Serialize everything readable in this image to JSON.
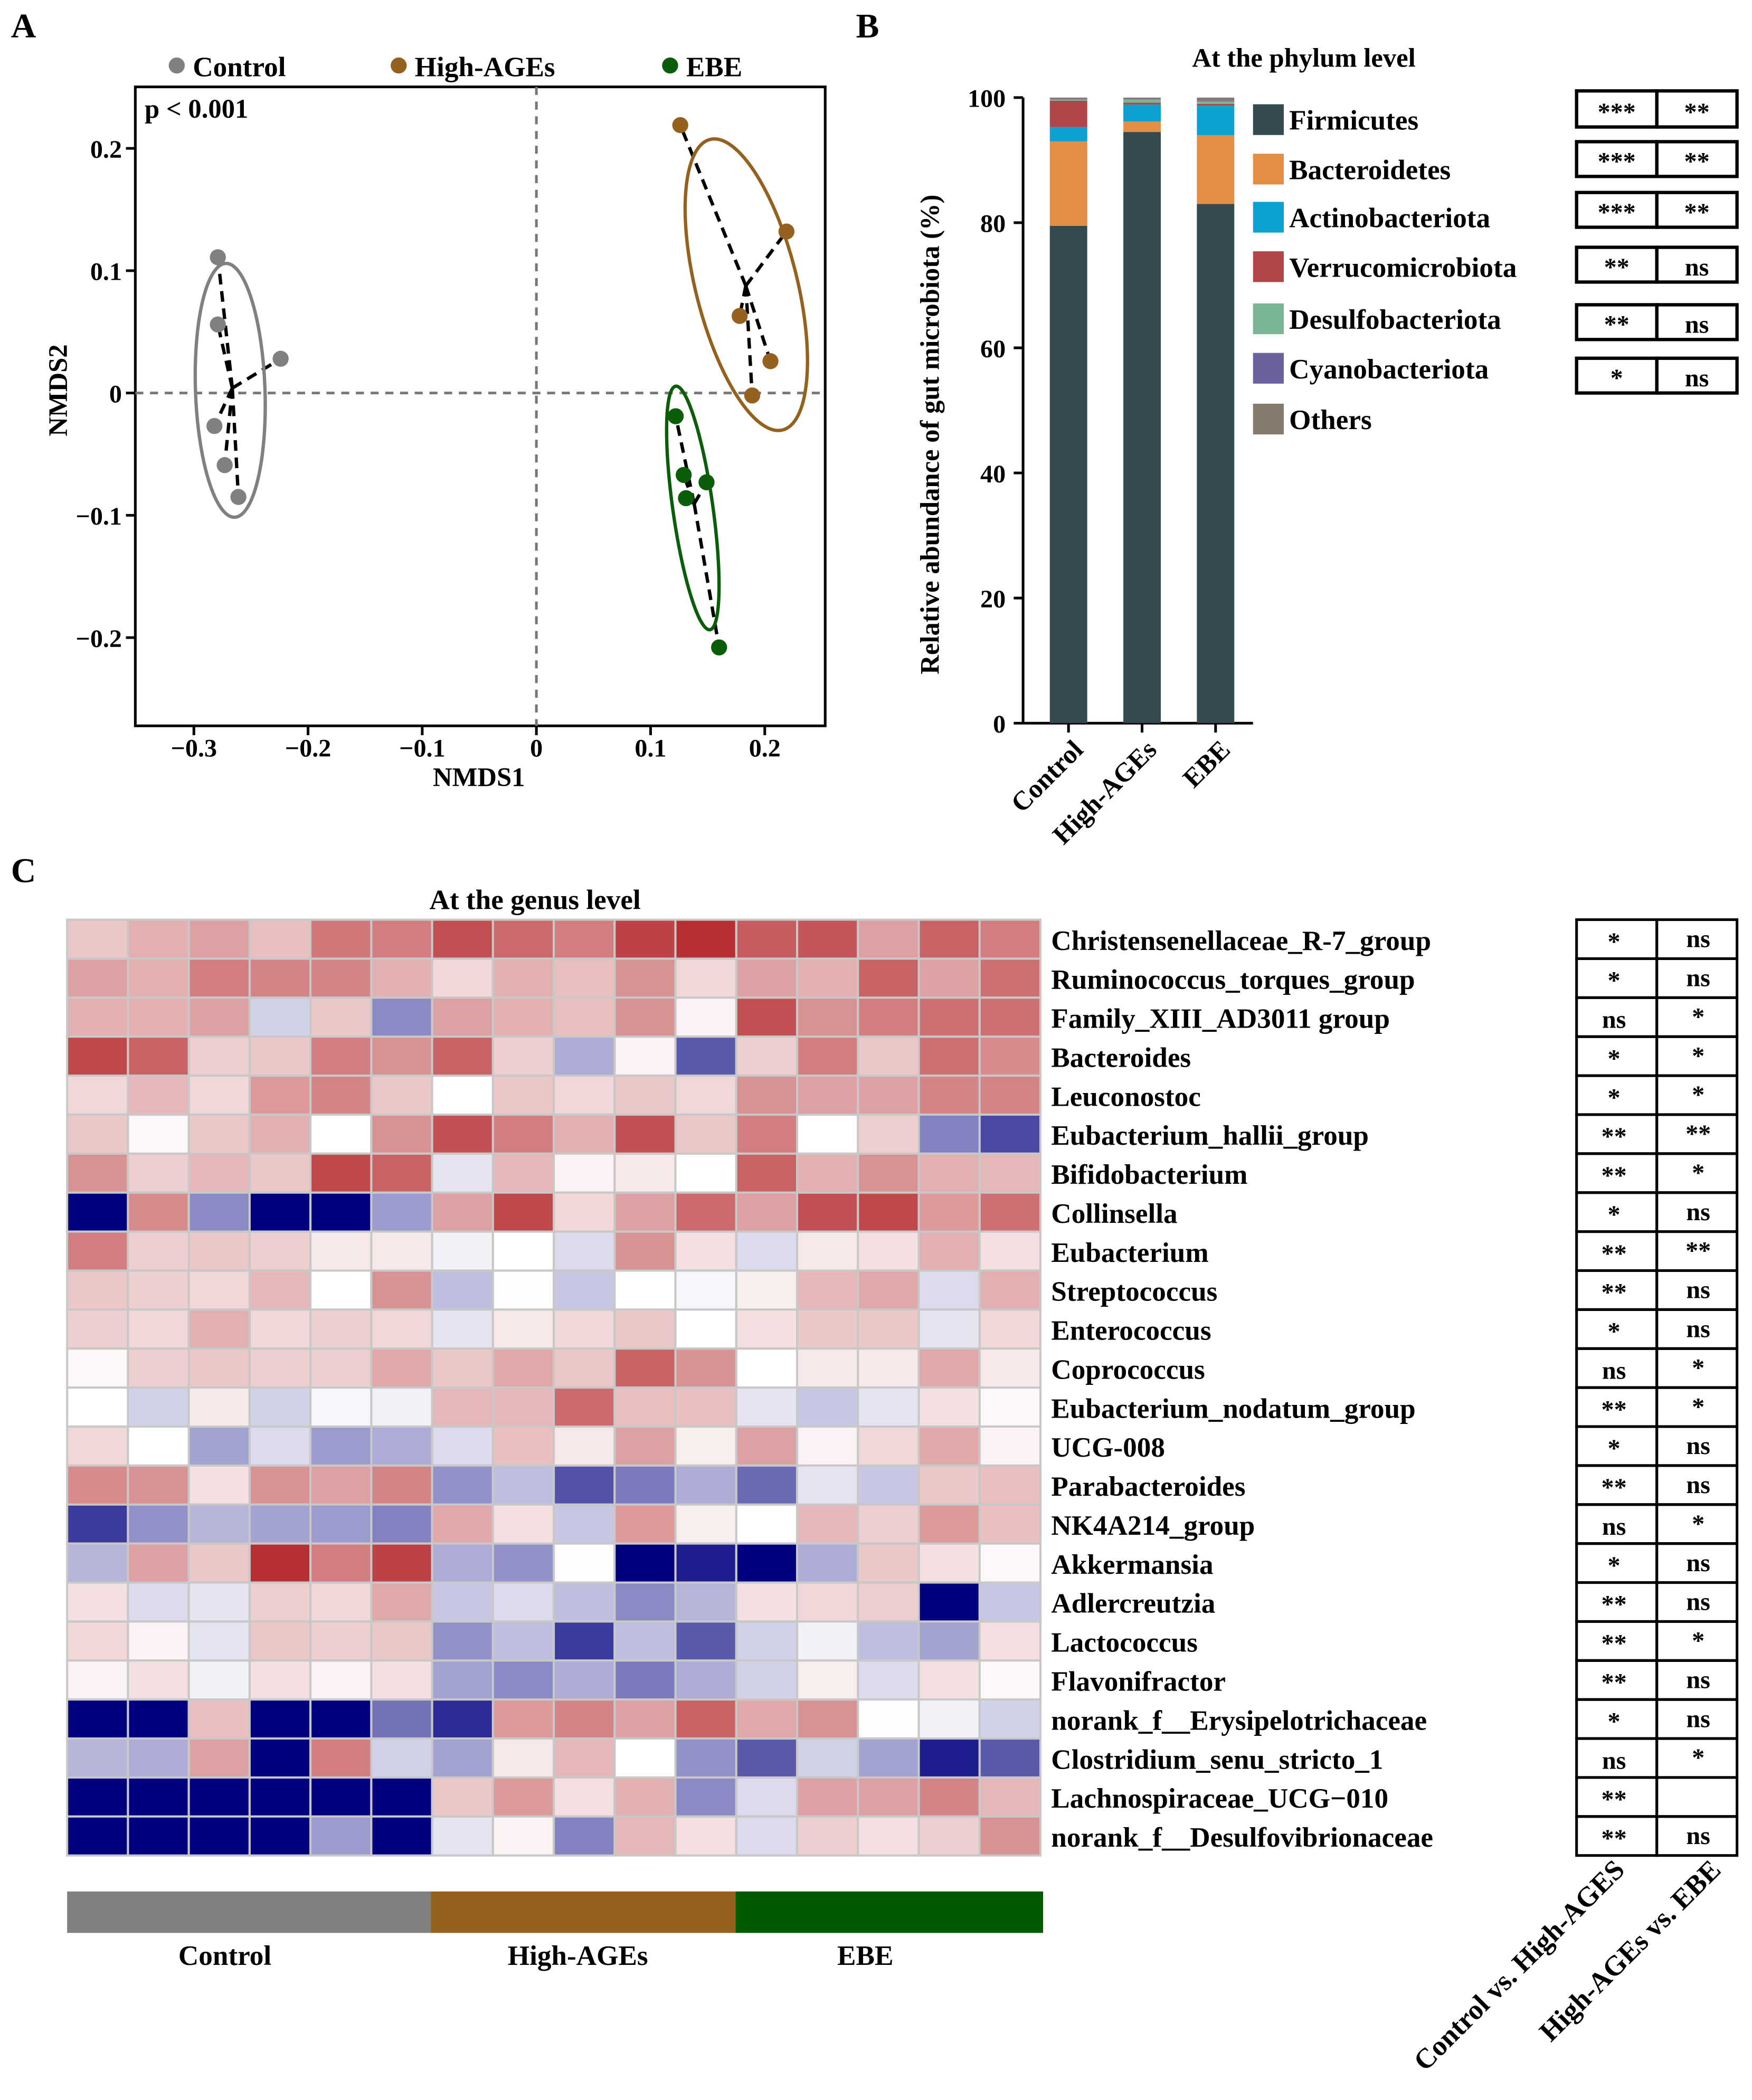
{
  "panels": {
    "a": "A",
    "b": "B",
    "c": "C"
  },
  "chart_data": [
    {
      "type": "scatter",
      "title": "",
      "annotation": "p < 0.001",
      "xlabel": "NMDS1",
      "ylabel": "NMDS2",
      "xlim": [
        -0.35,
        0.255
      ],
      "ylim": [
        -0.27,
        0.25
      ],
      "xticks": [
        -0.3,
        -0.2,
        -0.1,
        0,
        0.1,
        0.2
      ],
      "xtick_labels": [
        "−0.3",
        "−0.2",
        "−0.1",
        "0",
        "0.1",
        "0.2"
      ],
      "yticks": [
        0.2,
        0.1,
        0,
        -0.1,
        -0.2
      ],
      "ytick_labels": [
        "0.2",
        "0.1",
        "0",
        "−0.1",
        "−0.2"
      ],
      "legend_position": "top",
      "series": [
        {
          "name": "Control",
          "color": "#808080",
          "points": [
            [
              -0.279,
              0.111
            ],
            [
              -0.279,
              0.056
            ],
            [
              -0.224,
              0.028
            ],
            [
              -0.282,
              -0.027
            ],
            [
              -0.273,
              -0.059
            ],
            [
              -0.261,
              -0.085
            ]
          ]
        },
        {
          "name": "High-AGEs",
          "color": "#94621e",
          "points": [
            [
              0.126,
              0.219
            ],
            [
              0.219,
              0.132
            ],
            [
              0.178,
              0.063
            ],
            [
              0.205,
              0.026
            ],
            [
              0.189,
              -0.002
            ]
          ]
        },
        {
          "name": "EBE",
          "color": "#0a5e0a",
          "points": [
            [
              0.122,
              -0.019
            ],
            [
              0.129,
              -0.067
            ],
            [
              0.149,
              -0.073
            ],
            [
              0.131,
              -0.086
            ],
            [
              0.16,
              -0.208
            ]
          ]
        }
      ]
    },
    {
      "type": "bar",
      "stacked": true,
      "title": "At the phylum level",
      "xlabel": "",
      "ylabel": "Relative abundance of gut microbiota (%)",
      "ylim": [
        0,
        100
      ],
      "yticks": [
        0,
        20,
        40,
        60,
        80,
        100
      ],
      "categories": [
        "Control",
        "High-AGEs",
        "EBE"
      ],
      "legend_position": "right",
      "series": [
        {
          "name": "Firmicutes",
          "color": "#344a50",
          "values": [
            79.5,
            94.5,
            83.0
          ]
        },
        {
          "name": "Bacteroidetes",
          "color": "#e28f45",
          "values": [
            13.5,
            1.7,
            11.0
          ]
        },
        {
          "name": "Actinobacteriota",
          "color": "#0da1d0",
          "values": [
            2.3,
            2.7,
            4.7
          ]
        },
        {
          "name": "Verrucomicrobiota",
          "color": "#b0464a",
          "values": [
            4.2,
            0.3,
            0.3
          ]
        },
        {
          "name": "Desulfobacteriota",
          "color": "#7ab594",
          "values": [
            0.2,
            0.5,
            0.4
          ]
        },
        {
          "name": "Cyanobacteriota",
          "color": "#6b619c",
          "values": [
            0.1,
            0.1,
            0.1
          ]
        },
        {
          "name": "Others",
          "color": "#857a6c",
          "values": [
            0.2,
            0.2,
            0.5
          ]
        }
      ],
      "significance": [
        [
          "***",
          "**"
        ],
        [
          "***",
          "**"
        ],
        [
          "***",
          "**"
        ],
        [
          "**",
          "ns"
        ],
        [
          "**",
          "ns"
        ],
        [
          "*",
          "ns"
        ]
      ]
    },
    {
      "type": "heatmap",
      "title": "At the genus level",
      "color_low": "#000080",
      "color_high": "#b22226",
      "range": [
        -3,
        3
      ],
      "groups": [
        {
          "name": "Control",
          "color": "#808080",
          "n": 6
        },
        {
          "name": "High-AGEs",
          "color": "#94621e",
          "n": 5
        },
        {
          "name": "EBE",
          "color": "#005a00",
          "n": 5
        }
      ],
      "comparison_labels": [
        "Control vs. High-AGES",
        "High-AGEs vs. EBE"
      ],
      "rows": [
        {
          "name": "Christensenellaceae_R-7_group",
          "sig": [
            "*",
            "ns"
          ],
          "values": [
            0.6,
            0.9,
            1.1,
            0.7,
            1.7,
            1.6,
            2.3,
            1.9,
            1.6,
            2.5,
            2.8,
            2.1,
            2.2,
            1.1,
            2.0,
            1.6
          ]
        },
        {
          "name": "Ruminococcus_torques_group",
          "sig": [
            "*",
            "ns"
          ],
          "values": [
            1.1,
            0.9,
            1.6,
            1.5,
            1.5,
            0.9,
            0.4,
            0.9,
            0.7,
            1.3,
            0.4,
            1.1,
            0.9,
            2.0,
            1.1,
            1.8
          ]
        },
        {
          "name": "Family_XIII_AD3011 group",
          "sig": [
            "ns",
            "*"
          ],
          "values": [
            0.9,
            0.9,
            1.1,
            -0.4,
            0.6,
            -1.2,
            1.1,
            0.9,
            0.7,
            1.3,
            0.1,
            2.3,
            1.3,
            1.6,
            1.8,
            1.8
          ]
        },
        {
          "name": "Bacteroides",
          "sig": [
            "*",
            "*"
          ],
          "values": [
            2.4,
            2.0,
            0.5,
            0.6,
            1.6,
            1.3,
            2.0,
            0.5,
            -0.8,
            0.1,
            -1.8,
            0.5,
            1.6,
            0.6,
            1.8,
            1.4
          ]
        },
        {
          "name": "Leuconostoc",
          "sig": [
            "*",
            "*"
          ],
          "values": [
            0.4,
            0.8,
            0.4,
            1.2,
            1.5,
            0.6,
            0,
            0.6,
            0.4,
            0.6,
            0.4,
            1.3,
            1.1,
            1.1,
            1.5,
            1.5
          ]
        },
        {
          "name": "Eubacterium_hallii_group",
          "sig": [
            "**",
            "**"
          ],
          "values": [
            0.6,
            0.05,
            0.6,
            0.9,
            0,
            1.3,
            2.3,
            1.6,
            0.9,
            2.3,
            0.6,
            1.6,
            0,
            0.5,
            -1.3,
            -2.0
          ]
        },
        {
          "name": "Bifidobacterium",
          "sig": [
            "**",
            "*"
          ],
          "values": [
            1.3,
            0.5,
            0.8,
            0.6,
            2.4,
            2.0,
            -0.2,
            0.8,
            0.1,
            0.2,
            0,
            2.0,
            0.9,
            1.3,
            0.9,
            0.8
          ]
        },
        {
          "name": "Collinsella",
          "sig": [
            "*",
            "ns"
          ],
          "values": [
            -3,
            1.4,
            -1.2,
            -3,
            -3,
            -1.0,
            1.1,
            2.4,
            0.4,
            1.1,
            1.9,
            1.1,
            2.3,
            2.4,
            1.2,
            1.8
          ]
        },
        {
          "name": "Eubacterium",
          "sig": [
            "**",
            "**"
          ],
          "values": [
            1.6,
            0.5,
            0.6,
            0.5,
            0.2,
            0.2,
            -0.1,
            0,
            -0.3,
            1.3,
            0.3,
            -0.3,
            0.2,
            0.3,
            0.9,
            0.3
          ]
        },
        {
          "name": "Streptococcus",
          "sig": [
            "**",
            "ns"
          ],
          "values": [
            0.6,
            0.5,
            0.4,
            0.8,
            0,
            1.3,
            -0.6,
            0.02,
            -0.5,
            0,
            -0.05,
            0.15,
            0.8,
            1.0,
            -0.3,
            0.9
          ]
        },
        {
          "name": "Enterococcus",
          "sig": [
            "*",
            "ns"
          ],
          "values": [
            0.5,
            0.4,
            0.9,
            0.4,
            0.5,
            0.4,
            -0.2,
            0.2,
            0.4,
            0.6,
            0,
            0.3,
            0.6,
            0.6,
            -0.2,
            0.4
          ]
        },
        {
          "name": "Coprococcus",
          "sig": [
            "ns",
            "*"
          ],
          "values": [
            0.05,
            0.5,
            0.6,
            0.5,
            0.5,
            1.0,
            0.6,
            1.0,
            0.6,
            2.0,
            1.3,
            0,
            0.2,
            0.2,
            1.0,
            0.2
          ]
        },
        {
          "name": "Eubacterium_nodatum_group",
          "sig": [
            "**",
            "*"
          ],
          "values": [
            0,
            -0.4,
            0.2,
            -0.4,
            -0.05,
            -0.1,
            0.8,
            0.8,
            1.9,
            0.7,
            0.7,
            -0.2,
            -0.5,
            -0.2,
            0.3,
            0.05
          ]
        },
        {
          "name": "UCG-008",
          "sig": [
            "*",
            "ns"
          ],
          "values": [
            0.4,
            0,
            -0.9,
            -0.3,
            -1.0,
            -0.8,
            -0.3,
            0.7,
            0.2,
            1.1,
            0.15,
            1.1,
            0.1,
            0.4,
            1.0,
            0.1
          ]
        },
        {
          "name": "Parabacteroides",
          "sig": [
            "**",
            "ns"
          ],
          "values": [
            1.4,
            1.3,
            0.3,
            1.3,
            1.1,
            1.5,
            -1.1,
            -0.6,
            -1.9,
            -1.4,
            -0.8,
            -1.6,
            -0.2,
            -0.5,
            0.6,
            0.7
          ]
        },
        {
          "name": "NK4A214_group",
          "sig": [
            "ns",
            "*"
          ],
          "values": [
            -2.2,
            -1.1,
            -0.7,
            -0.9,
            -1.0,
            -1.3,
            1.0,
            0.3,
            -0.5,
            1.2,
            0.15,
            0,
            0.8,
            0.5,
            1.2,
            0.7
          ]
        },
        {
          "name": "Akkermansia",
          "sig": [
            "*",
            "ns"
          ],
          "values": [
            -0.7,
            1.1,
            0.6,
            2.8,
            1.6,
            2.5,
            -0.8,
            -1.1,
            0.02,
            -3,
            -2.6,
            -3,
            -0.8,
            0.6,
            0.3,
            0.05
          ]
        },
        {
          "name": "Adlercreutzia",
          "sig": [
            "**",
            "ns"
          ],
          "values": [
            0.3,
            -0.3,
            -0.2,
            0.5,
            0.4,
            1.0,
            -0.5,
            -0.3,
            -0.6,
            -1.2,
            -0.7,
            0.3,
            0.4,
            0.5,
            -3,
            -0.5
          ]
        },
        {
          "name": "Lactococcus",
          "sig": [
            "**",
            "*"
          ],
          "values": [
            0.4,
            0.1,
            -0.2,
            0.6,
            0.5,
            0.6,
            -1.1,
            -0.6,
            -2.2,
            -0.6,
            -1.8,
            -0.4,
            -0.1,
            -0.6,
            -0.9,
            0.3
          ]
        },
        {
          "name": "Flavonifractor",
          "sig": [
            "**",
            "ns"
          ],
          "values": [
            0.1,
            0.3,
            -0.1,
            0.3,
            0.1,
            0.3,
            -0.9,
            -1.2,
            -0.8,
            -1.4,
            -0.8,
            -0.4,
            0.15,
            -0.3,
            0.3,
            0.05
          ]
        },
        {
          "name": "norank_f__Erysipelotrichaceae",
          "sig": [
            "*",
            "ns"
          ],
          "values": [
            -3,
            -3,
            0.7,
            -3,
            -3,
            -1.5,
            -2.4,
            1.2,
            1.5,
            1.1,
            2.0,
            1.0,
            1.3,
            0.02,
            -0.1,
            -0.4
          ]
        },
        {
          "name": "Clostridium_senu_stricto_1",
          "sig": [
            "ns",
            "*"
          ],
          "values": [
            -0.7,
            -0.8,
            1.1,
            -3,
            1.6,
            -0.4,
            -0.9,
            0.2,
            0.8,
            0,
            -1.1,
            -1.8,
            -0.4,
            -0.9,
            -2.6,
            -1.8
          ]
        },
        {
          "name": "Lachnospiraceae_UCG−010",
          "sig": [
            "**",
            ""
          ],
          "values": [
            -3,
            -3,
            -3,
            -3,
            -3,
            -3,
            0.6,
            1.2,
            0.3,
            0.9,
            -1.2,
            -0.3,
            1.1,
            1.1,
            1.5,
            0.8
          ]
        },
        {
          "name": "norank_f__Desulfovibrionaceae",
          "sig": [
            "**",
            "ns"
          ],
          "values": [
            -3,
            -3,
            -3,
            -3,
            -1.0,
            -3,
            -0.2,
            0.1,
            -1.3,
            0.8,
            0.3,
            -0.3,
            0.5,
            0.3,
            0.5,
            1.3
          ]
        }
      ]
    }
  ]
}
